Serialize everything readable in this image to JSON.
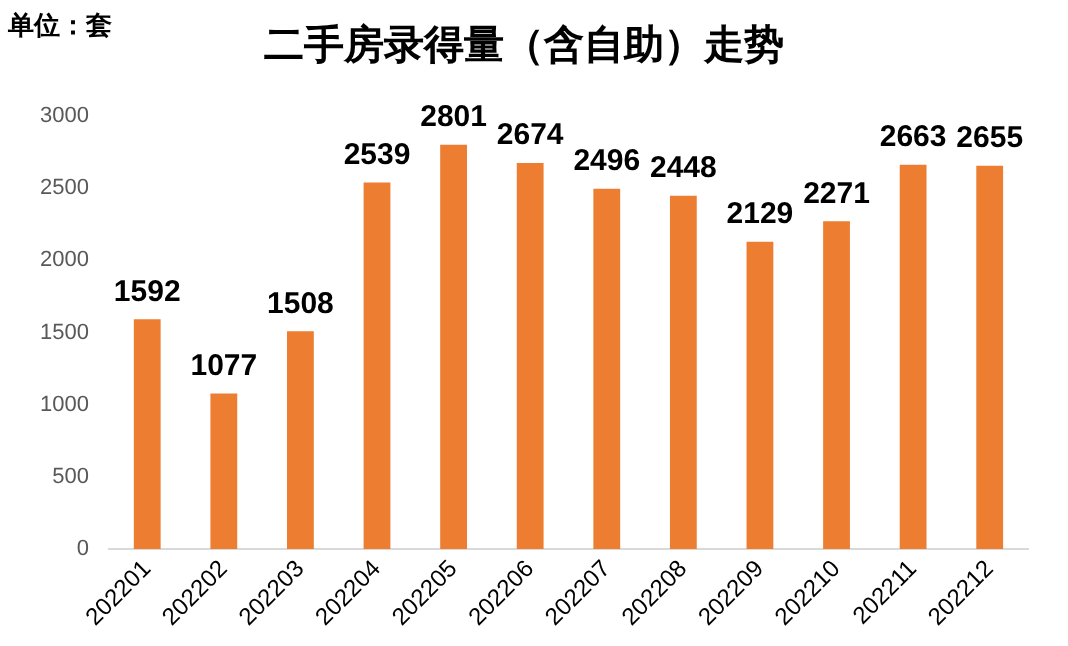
{
  "chart_data": {
    "type": "bar",
    "title": "二手房录得量（含自助）走势",
    "annotations": [
      "单位：套"
    ],
    "categories": [
      "202201",
      "202202",
      "202203",
      "202204",
      "202205",
      "202206",
      "202207",
      "202208",
      "202209",
      "202210",
      "202211",
      "202212"
    ],
    "values": [
      1592,
      1077,
      1508,
      2539,
      2801,
      2674,
      2496,
      2448,
      2129,
      2271,
      2663,
      2655
    ],
    "color": "#ed7d31",
    "ylim": [
      0,
      3000
    ],
    "yticks": [
      0,
      500,
      1000,
      1500,
      2000,
      2500,
      3000
    ],
    "grid": false,
    "legend": false,
    "data_labels": true
  }
}
